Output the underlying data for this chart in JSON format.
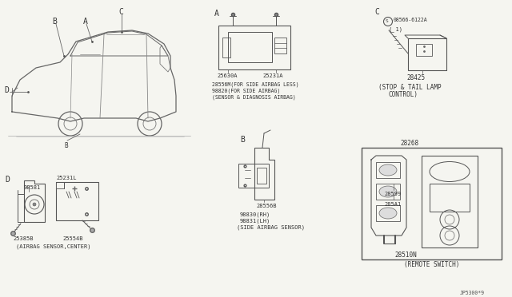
{
  "bg_color": "#f5f5f0",
  "line_color": "#555555",
  "text_color": "#333333",
  "font_size_small": 5.0,
  "font_size_med": 5.5,
  "font_size_large": 7.0,
  "sections": {
    "car": {
      "label_A": "A",
      "label_B": "B",
      "label_C": "C",
      "label_D": "D"
    },
    "A": {
      "label": "A",
      "part1": "25630A",
      "part2": "25231A",
      "line1": "28556M(FOR SIDE AIRBAG LESS)",
      "line2": "98820(FOR SIDE AIRBAG)",
      "line3": "(SENSOR & DIAGNOSIS AIRBAG)"
    },
    "B": {
      "label": "B",
      "part1": "28556B",
      "line1": "98830(RH)",
      "line2": "98831(LH)",
      "line3": "(SIDE AIRBAG SENSOR)"
    },
    "C": {
      "label": "C",
      "screw_label": "S",
      "screw_part": "08566-6122A",
      "screw_num": "( 1)",
      "part": "28425",
      "line1": "(STOP & TAIL LAMP",
      "line2": "CONTROL)"
    },
    "D": {
      "label": "D",
      "part1": "25231L",
      "part2": "98581",
      "part3": "25385B",
      "part4": "25554B",
      "line1": "(AIRBAG SENSOR,CENTER)"
    },
    "E": {
      "part_top": "28268",
      "part1": "28599",
      "part2": "285A1",
      "part3": "28510N",
      "line1": "(REMOTE SWITCH)"
    }
  },
  "footer": "JP5300*9"
}
